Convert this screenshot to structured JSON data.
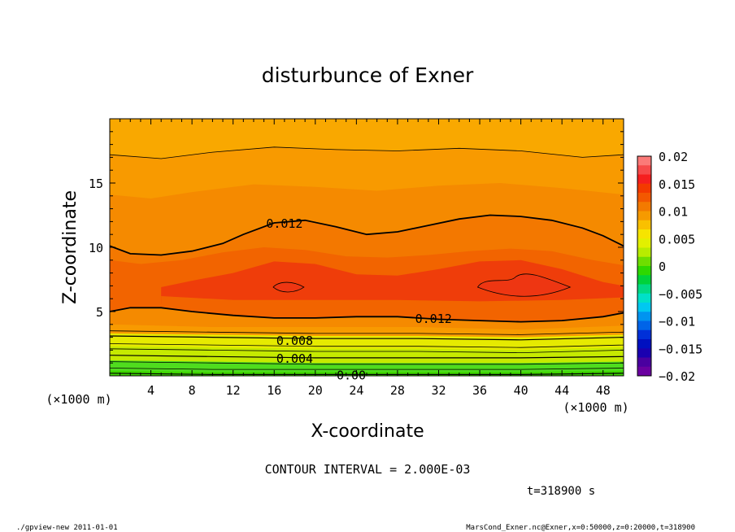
{
  "chart_data": {
    "type": "heatmap",
    "title": "disturbunce of Exner",
    "xlabel": "X-coordinate",
    "ylabel": "Z-coordinate",
    "x_unit": "(×1000 m)",
    "y_unit": "(×1000 m)",
    "xlim": [
      0,
      50
    ],
    "ylim": [
      0,
      20
    ],
    "x_ticks": [
      4,
      8,
      12,
      16,
      20,
      24,
      28,
      32,
      36,
      40,
      44,
      48
    ],
    "y_ticks": [
      5,
      10,
      15
    ],
    "contour_labels": [
      {
        "text": "0.012",
        "x": 17,
        "z": 11.9
      },
      {
        "text": "0.012",
        "x": 31.5,
        "z": 4.5
      },
      {
        "text": "0.008",
        "x": 18,
        "z": 2.8
      },
      {
        "text": "0.004",
        "x": 18,
        "z": 1.4
      },
      {
        "text": "0.00",
        "x": 23.5,
        "z": 0.1
      }
    ],
    "contour_lines": [
      {
        "level": 0.012,
        "x": [
          0,
          2,
          5,
          8,
          11,
          13,
          16,
          19,
          22,
          25,
          28,
          31,
          34,
          37,
          40,
          43,
          46,
          48,
          50
        ],
        "z": [
          10.1,
          9.5,
          9.4,
          9.7,
          10.3,
          11.0,
          11.9,
          12.1,
          11.6,
          11.0,
          11.2,
          11.7,
          12.2,
          12.5,
          12.4,
          12.1,
          11.5,
          10.9,
          10.1
        ]
      },
      {
        "level": 0.012,
        "x": [
          0,
          2,
          5,
          8,
          12,
          16,
          20,
          24,
          28,
          32,
          36,
          40,
          44,
          48,
          50
        ],
        "z": [
          5.0,
          5.3,
          5.3,
          5.0,
          4.7,
          4.5,
          4.5,
          4.6,
          4.6,
          4.4,
          4.3,
          4.2,
          4.3,
          4.6,
          4.9
        ]
      },
      {
        "level": 0.008,
        "x": [
          0,
          10,
          20,
          30,
          40,
          50
        ],
        "z": [
          3.1,
          3.0,
          2.9,
          2.9,
          2.8,
          3.0
        ]
      },
      {
        "level": 0.004,
        "x": [
          0,
          10,
          20,
          30,
          40,
          50
        ],
        "z": [
          1.6,
          1.5,
          1.4,
          1.4,
          1.4,
          1.5
        ]
      },
      {
        "level": 0.0,
        "x": [
          0,
          10,
          20,
          30,
          40,
          50
        ],
        "z": [
          0.2,
          0.1,
          0.1,
          0.1,
          0.1,
          0.2
        ]
      }
    ],
    "colorbar": {
      "labels": [
        "0.02",
        "0.015",
        "0.01",
        "0.005",
        "0",
        "−0.005",
        "−0.01",
        "−0.015",
        "−0.02"
      ],
      "range": [
        -0.02,
        0.02
      ]
    },
    "colors": {
      "top_band": "#f9a800",
      "orange_1": "#f89a00",
      "orange_2": "#f58a00",
      "orange_3": "#f37800",
      "red_orange": "#f26400",
      "red": "#ef3d0a",
      "red_core": "#ee3612",
      "yellow": "#e6ea00",
      "yellow_green": "#c6ea00",
      "green": "#4fdc1e",
      "green_bottom": "#3ed600"
    }
  },
  "annotations": {
    "contour_interval": "CONTOUR INTERVAL = 2.000E-03",
    "time": "t=318900 s",
    "footer_left": "./gpview-new   2011-01-01",
    "footer_right": "MarsCond_Exner.nc@Exner,x=0:50000,z=0:20000,t=318900"
  }
}
